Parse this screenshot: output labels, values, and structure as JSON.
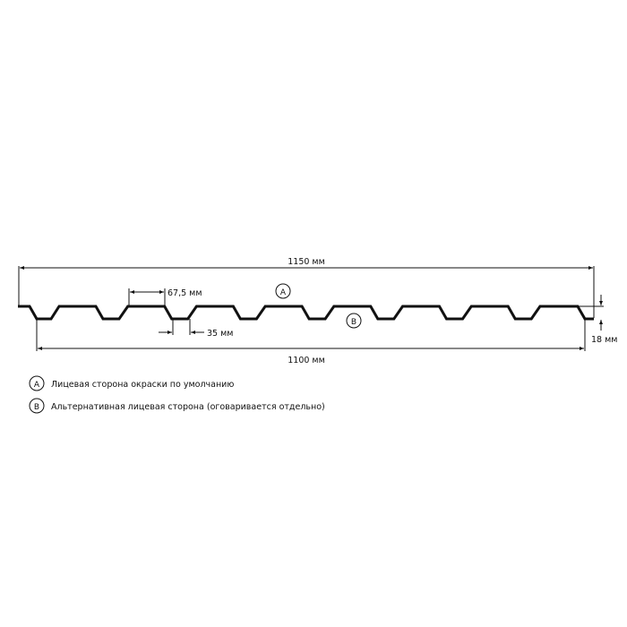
{
  "dimensions": {
    "total_width": "1150 мм",
    "useful_width": "1100 мм",
    "rib_top": "67,5 мм",
    "rib_bottom": "35 мм",
    "height": "18 мм"
  },
  "markers": {
    "a": "A",
    "b": "B"
  },
  "legend": [
    {
      "marker": "A",
      "text": "Лицевая сторона окраски по умолчанию"
    },
    {
      "marker": "B",
      "text": "Альтернативная лицевая сторона (оговаривается отдельно)"
    }
  ],
  "colors": {
    "line": "#111111"
  }
}
